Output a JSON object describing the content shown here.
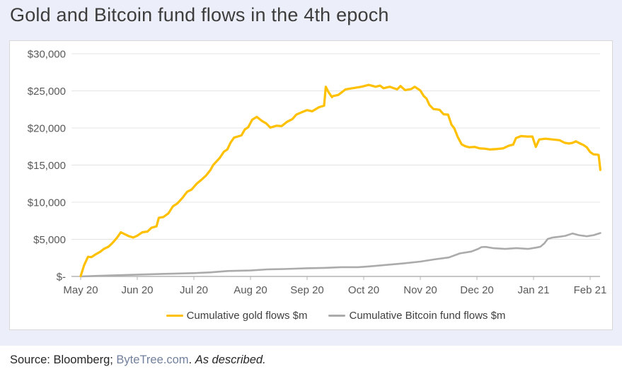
{
  "page": {
    "title": "Gold and Bitcoin fund flows in the 4th epoch",
    "source": {
      "prefix": "Source: Bloomberg; ",
      "link": "ByteTree.com",
      "separator": ". ",
      "note": "As described."
    }
  },
  "colors": {
    "background": "#ECEFF9",
    "card_background": "#FFFFFF",
    "card_border": "#D8D8D8",
    "gridline": "#E4E4E4",
    "axis_line": "#B3B3B3",
    "tick_label": "#595959",
    "legend_text": "#404040",
    "title_text": "#3D3D3D",
    "gold": "#FFC000",
    "bitcoin_gray": "#ABABAB",
    "link_text": "#71809C"
  },
  "chart_data": {
    "type": "line",
    "title": "Gold and Bitcoin fund flows in the 4th epoch",
    "xlabel": "",
    "ylabel": "",
    "x_unit": "months after the May 20 tick (0 = May 20, 9 = Feb 21)",
    "x_tick_labels": [
      "May 20",
      "Jun 20",
      "Jul 20",
      "Aug 20",
      "Sep 20",
      "Oct 20",
      "Nov 20",
      "Dec 20",
      "Jan 21",
      "Feb 21"
    ],
    "y_tick_values": [
      30000,
      25000,
      20000,
      15000,
      10000,
      5000,
      0
    ],
    "y_tick_labels": [
      "$30,000",
      "$25,000",
      "$20,000",
      "$15,000",
      "$10,000",
      "$5,000",
      "$-"
    ],
    "ylim": [
      0,
      30000
    ],
    "xlim_months": [
      -0.16,
      9.18
    ],
    "grid": "horizontal",
    "legend_position": "bottom-center",
    "series": [
      {
        "name": "Cumulative gold flows $m",
        "color": "#FFC000",
        "points": [
          [
            0,
            50
          ],
          [
            0.06,
            1500
          ],
          [
            0.13,
            2650
          ],
          [
            0.19,
            2600
          ],
          [
            0.26,
            2950
          ],
          [
            0.34,
            3300
          ],
          [
            0.41,
            3700
          ],
          [
            0.49,
            4000
          ],
          [
            0.56,
            4500
          ],
          [
            0.64,
            5200
          ],
          [
            0.71,
            5950
          ],
          [
            0.79,
            5650
          ],
          [
            0.86,
            5400
          ],
          [
            0.93,
            5250
          ],
          [
            1.0,
            5500
          ],
          [
            1.09,
            5950
          ],
          [
            1.18,
            6050
          ],
          [
            1.25,
            6550
          ],
          [
            1.34,
            6750
          ],
          [
            1.38,
            7900
          ],
          [
            1.46,
            8000
          ],
          [
            1.55,
            8500
          ],
          [
            1.63,
            9450
          ],
          [
            1.71,
            9850
          ],
          [
            1.8,
            10600
          ],
          [
            1.88,
            11400
          ],
          [
            1.96,
            11700
          ],
          [
            2.05,
            12500
          ],
          [
            2.13,
            13000
          ],
          [
            2.21,
            13550
          ],
          [
            2.29,
            14300
          ],
          [
            2.34,
            15000
          ],
          [
            2.4,
            15500
          ],
          [
            2.46,
            16000
          ],
          [
            2.53,
            16800
          ],
          [
            2.59,
            17100
          ],
          [
            2.65,
            18050
          ],
          [
            2.71,
            18700
          ],
          [
            2.84,
            19000
          ],
          [
            2.9,
            19800
          ],
          [
            2.96,
            20100
          ],
          [
            3.03,
            21100
          ],
          [
            3.11,
            21500
          ],
          [
            3.21,
            20900
          ],
          [
            3.28,
            20600
          ],
          [
            3.35,
            20050
          ],
          [
            3.46,
            20300
          ],
          [
            3.55,
            20250
          ],
          [
            3.64,
            20800
          ],
          [
            3.74,
            21200
          ],
          [
            3.81,
            21800
          ],
          [
            3.9,
            22100
          ],
          [
            4.0,
            22400
          ],
          [
            4.09,
            22250
          ],
          [
            4.21,
            22800
          ],
          [
            4.3,
            23000
          ],
          [
            4.33,
            25550
          ],
          [
            4.38,
            24800
          ],
          [
            4.44,
            24150
          ],
          [
            4.46,
            24300
          ],
          [
            4.55,
            24450
          ],
          [
            4.68,
            25200
          ],
          [
            4.8,
            25350
          ],
          [
            4.96,
            25550
          ],
          [
            5.09,
            25800
          ],
          [
            5.21,
            25550
          ],
          [
            5.29,
            25700
          ],
          [
            5.35,
            25350
          ],
          [
            5.46,
            25550
          ],
          [
            5.59,
            25200
          ],
          [
            5.65,
            25650
          ],
          [
            5.73,
            25100
          ],
          [
            5.84,
            25250
          ],
          [
            5.9,
            25550
          ],
          [
            6.0,
            25050
          ],
          [
            6.06,
            24300
          ],
          [
            6.11,
            23950
          ],
          [
            6.16,
            23100
          ],
          [
            6.23,
            22550
          ],
          [
            6.34,
            22450
          ],
          [
            6.41,
            21850
          ],
          [
            6.49,
            21800
          ],
          [
            6.55,
            20450
          ],
          [
            6.6,
            19950
          ],
          [
            6.66,
            18800
          ],
          [
            6.73,
            17800
          ],
          [
            6.79,
            17550
          ],
          [
            6.86,
            17400
          ],
          [
            6.96,
            17450
          ],
          [
            7.05,
            17250
          ],
          [
            7.15,
            17200
          ],
          [
            7.23,
            17100
          ],
          [
            7.34,
            17150
          ],
          [
            7.46,
            17250
          ],
          [
            7.56,
            17600
          ],
          [
            7.64,
            17750
          ],
          [
            7.69,
            18650
          ],
          [
            7.78,
            18900
          ],
          [
            7.89,
            18850
          ],
          [
            7.98,
            18850
          ],
          [
            8.04,
            17450
          ],
          [
            8.1,
            18450
          ],
          [
            8.21,
            18550
          ],
          [
            8.34,
            18450
          ],
          [
            8.46,
            18350
          ],
          [
            8.55,
            18000
          ],
          [
            8.63,
            17900
          ],
          [
            8.69,
            18000
          ],
          [
            8.75,
            18200
          ],
          [
            8.81,
            17950
          ],
          [
            8.88,
            17700
          ],
          [
            8.94,
            17400
          ],
          [
            9.0,
            16750
          ],
          [
            9.06,
            16450
          ],
          [
            9.13,
            16400
          ],
          [
            9.15,
            16350
          ],
          [
            9.18,
            14350
          ]
        ]
      },
      {
        "name": "Cumulative Bitcoin fund flows $m",
        "color": "#ABABAB",
        "points": [
          [
            0,
            0
          ],
          [
            0.5,
            120
          ],
          [
            1.0,
            250
          ],
          [
            1.5,
            350
          ],
          [
            2.0,
            450
          ],
          [
            2.3,
            550
          ],
          [
            2.6,
            730
          ],
          [
            3.0,
            800
          ],
          [
            3.3,
            950
          ],
          [
            3.6,
            1000
          ],
          [
            4.0,
            1100
          ],
          [
            4.3,
            1150
          ],
          [
            4.6,
            1250
          ],
          [
            4.9,
            1250
          ],
          [
            5.1,
            1350
          ],
          [
            5.4,
            1550
          ],
          [
            5.7,
            1750
          ],
          [
            6.0,
            2000
          ],
          [
            6.25,
            2300
          ],
          [
            6.5,
            2550
          ],
          [
            6.7,
            3100
          ],
          [
            6.9,
            3350
          ],
          [
            7.02,
            3700
          ],
          [
            7.08,
            3950
          ],
          [
            7.15,
            3980
          ],
          [
            7.3,
            3800
          ],
          [
            7.5,
            3700
          ],
          [
            7.7,
            3820
          ],
          [
            7.9,
            3700
          ],
          [
            8.04,
            3880
          ],
          [
            8.12,
            4000
          ],
          [
            8.19,
            4450
          ],
          [
            8.25,
            5050
          ],
          [
            8.34,
            5250
          ],
          [
            8.46,
            5350
          ],
          [
            8.56,
            5470
          ],
          [
            8.69,
            5790
          ],
          [
            8.8,
            5560
          ],
          [
            8.94,
            5410
          ],
          [
            9.06,
            5560
          ],
          [
            9.18,
            5850
          ]
        ]
      }
    ]
  }
}
